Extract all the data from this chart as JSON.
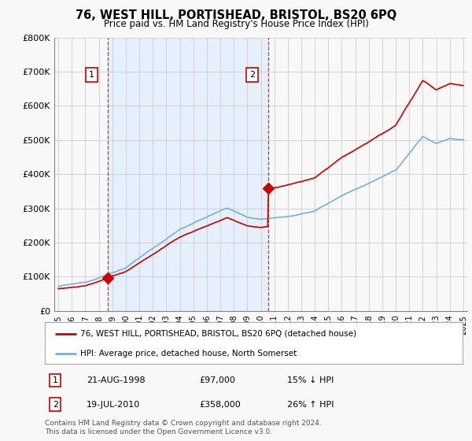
{
  "title": "76, WEST HILL, PORTISHEAD, BRISTOL, BS20 6PQ",
  "subtitle": "Price paid vs. HM Land Registry's House Price Index (HPI)",
  "legend_label_red": "76, WEST HILL, PORTISHEAD, BRISTOL, BS20 6PQ (detached house)",
  "legend_label_blue": "HPI: Average price, detached house, North Somerset",
  "sale1_date": "21-AUG-1998",
  "sale1_price": "£97,000",
  "sale1_hpi": "15% ↓ HPI",
  "sale1_year": 1998.65,
  "sale1_value": 97000,
  "sale2_date": "19-JUL-2010",
  "sale2_price": "£358,000",
  "sale2_hpi": "26% ↑ HPI",
  "sale2_year": 2010.55,
  "sale2_value": 358000,
  "copyright_text": "Contains HM Land Registry data © Crown copyright and database right 2024.\nThis data is licensed under the Open Government Licence v3.0.",
  "red_color": "#cc0000",
  "blue_color": "#7ab0d4",
  "fill_color": "#ddeeff",
  "background_color": "#f8f8f8",
  "grid_color": "#cccccc",
  "ylim": [
    0,
    800000
  ],
  "xlim": [
    1994.7,
    2025.3
  ]
}
